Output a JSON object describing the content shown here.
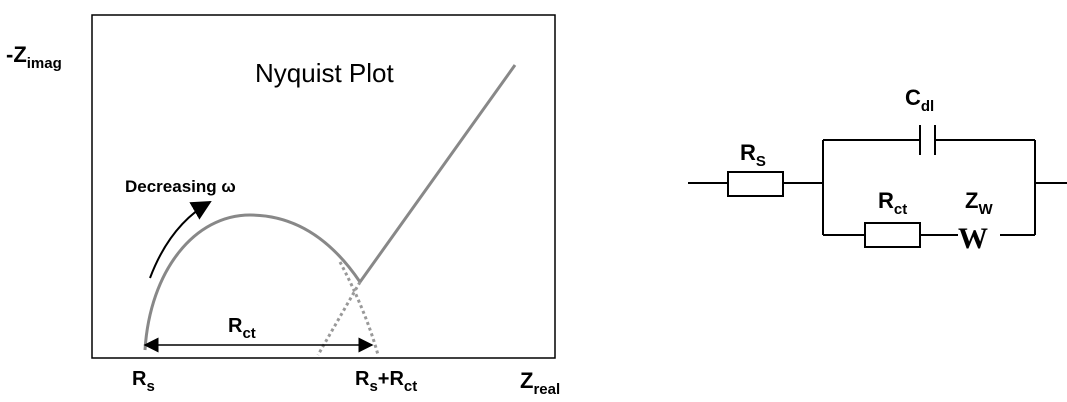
{
  "plot": {
    "title": "Nyquist Plot",
    "y_axis": {
      "main": "-Z",
      "sub": "imag"
    },
    "x_axis": {
      "main": "Z",
      "sub": "real"
    },
    "annotation": "Decreasing ω",
    "rct_label": {
      "main": "R",
      "sub": "ct"
    },
    "rs_label": {
      "main": "R",
      "sub": "s"
    },
    "rs_rct_label": {
      "main": "R",
      "sub": "s",
      "rest": "+R",
      "sub2": "ct"
    }
  },
  "circuit": {
    "rs": {
      "main": "R",
      "sub": "S"
    },
    "cdl": {
      "main": "C",
      "sub": "dl"
    },
    "rct": {
      "main": "R",
      "sub": "ct"
    },
    "zw": {
      "main": "Z",
      "sub": "W"
    },
    "w_symbol": "W"
  }
}
